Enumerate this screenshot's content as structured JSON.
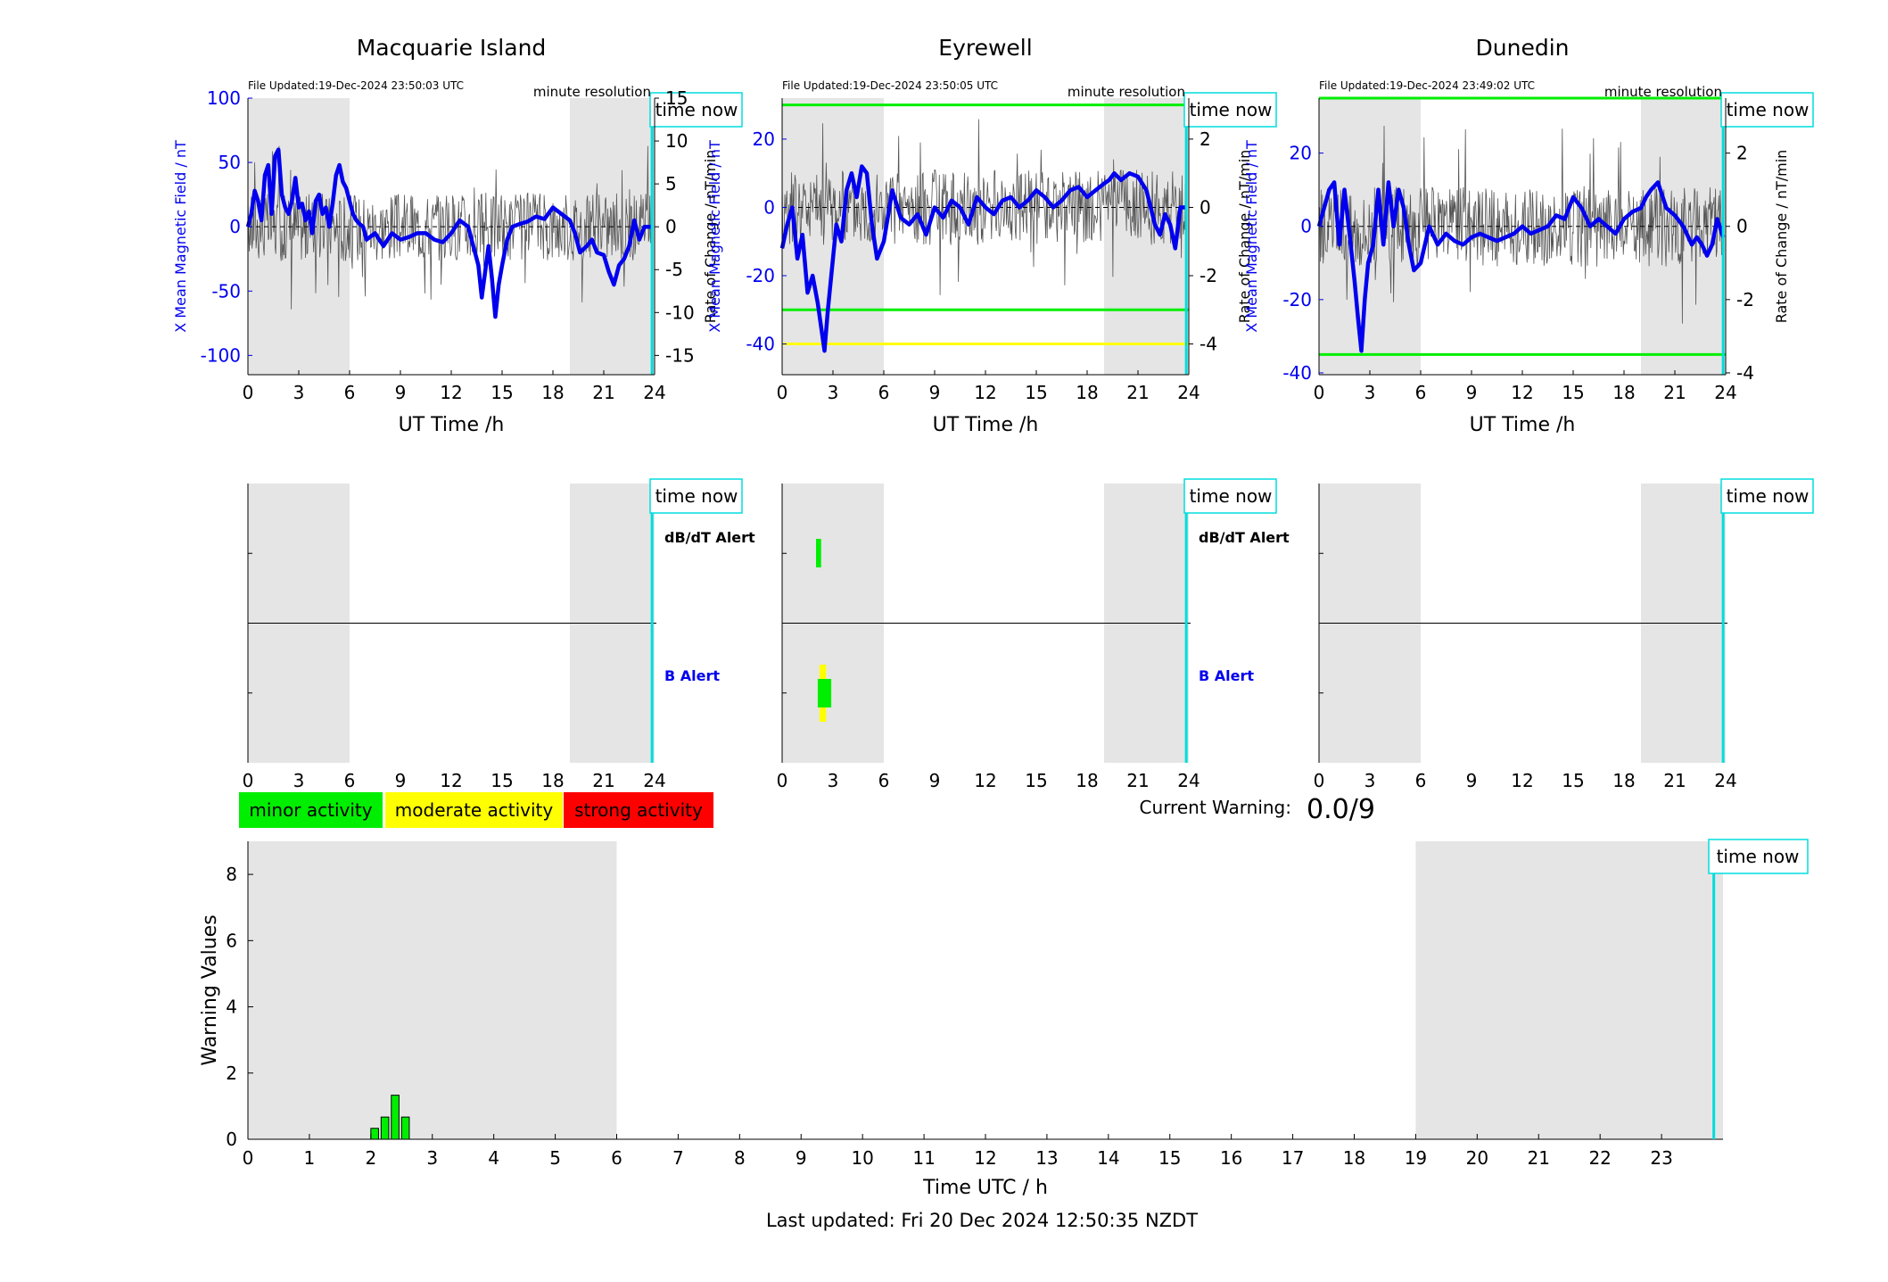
{
  "footer": "Last updated: Fri 20 Dec 2024 12:50:35 NZDT",
  "colors": {
    "b_line": "#0000ee",
    "dbdt_line": "#555555",
    "minor": "#00ee00",
    "moderate": "#ffff00",
    "strong": "#ff0000",
    "night_shade": "#e5e5e5",
    "time_now": "#00dddd",
    "threshold_green": "#00ee00",
    "threshold_yellow": "#ffff00"
  },
  "legend": {
    "minor": "minor activity",
    "moderate": "moderate activity",
    "strong": "strong activity"
  },
  "current_warning": {
    "label": "Current Warning:",
    "value": "0.0/9"
  },
  "common": {
    "time_now_label": "time now",
    "resolution_label": "minute resolution",
    "ut_xlabel": "UT Time /h",
    "left_ylabel": "X Mean Magnetic Field / nT",
    "right_ylabel": "Rate of Change / nT/min",
    "dbdt_alert_label": "dB/dT Alert",
    "b_alert_label": "B Alert",
    "x_ticks": [
      0,
      3,
      6,
      9,
      12,
      15,
      18,
      21,
      24
    ]
  },
  "chart_data": [
    {
      "type": "line",
      "station": "Macquarie Island",
      "file_updated": "File Updated:19-Dec-2024 23:50:03 UTC",
      "xlim": [
        0,
        24
      ],
      "ylim_left": [
        -115,
        100
      ],
      "yticks_left": [
        -100,
        -50,
        0,
        50,
        100
      ],
      "ylim_right": [
        -17.25,
        15
      ],
      "yticks_right": [
        -15,
        -10,
        -5,
        0,
        5,
        10,
        15
      ],
      "night_shading": [
        [
          0,
          6
        ],
        [
          19,
          24
        ]
      ],
      "time_now": 23.85,
      "thresholds": [],
      "dbdt_noise_amplitude": 4,
      "series": [
        {
          "name": "X Mean Magnetic Field",
          "axis": "left",
          "x": [
            0,
            0.2,
            0.4,
            0.6,
            0.8,
            1,
            1.2,
            1.4,
            1.6,
            1.8,
            2,
            2.2,
            2.4,
            2.6,
            2.8,
            3,
            3.2,
            3.4,
            3.6,
            3.8,
            4,
            4.2,
            4.4,
            4.6,
            4.8,
            5,
            5.2,
            5.4,
            5.6,
            5.8,
            6,
            6.2,
            6.4,
            6.6,
            6.8,
            7,
            7.5,
            8,
            8.5,
            9,
            9.5,
            10,
            10.5,
            11,
            11.5,
            12,
            12.5,
            13,
            13.3,
            13.6,
            13.8,
            14,
            14.2,
            14.4,
            14.6,
            14.8,
            15,
            15.3,
            15.6,
            16,
            16.5,
            17,
            17.5,
            18,
            18.5,
            19,
            19.3,
            19.6,
            20,
            20.3,
            20.6,
            21,
            21.3,
            21.6,
            21.9,
            22.2,
            22.5,
            22.8,
            23.1,
            23.4,
            23.7,
            23.85
          ],
          "y": [
            0,
            10,
            28,
            20,
            5,
            40,
            48,
            10,
            55,
            60,
            25,
            15,
            10,
            20,
            38,
            15,
            18,
            5,
            12,
            -5,
            20,
            25,
            10,
            15,
            0,
            18,
            40,
            48,
            35,
            30,
            20,
            10,
            5,
            2,
            0,
            -10,
            -5,
            -15,
            -5,
            -10,
            -8,
            -5,
            -5,
            -10,
            -12,
            -5,
            5,
            0,
            -15,
            -30,
            -55,
            -35,
            -15,
            -40,
            -70,
            -45,
            -30,
            -10,
            0,
            2,
            4,
            8,
            6,
            15,
            10,
            5,
            -5,
            -20,
            -15,
            -10,
            -20,
            -22,
            -35,
            -45,
            -30,
            -25,
            -15,
            5,
            -10,
            0,
            0,
            0
          ]
        },
        {
          "name": "Rate of Change",
          "axis": "right",
          "x": [
            0,
            23.85
          ],
          "y": [
            0,
            0
          ]
        }
      ]
    },
    {
      "type": "line",
      "station": "Eyrewell",
      "file_updated": "File Updated:19-Dec-2024 23:50:05 UTC",
      "xlim": [
        0,
        24
      ],
      "ylim_left": [
        -49,
        32
      ],
      "yticks_left": [
        -40,
        -20,
        0,
        20
      ],
      "ylim_right": [
        -4.9,
        3.2
      ],
      "yticks_right": [
        -4,
        -2,
        0,
        2
      ],
      "night_shading": [
        [
          0,
          6
        ],
        [
          19,
          24
        ]
      ],
      "time_now": 23.85,
      "thresholds": [
        {
          "value": 30,
          "color": "green"
        },
        {
          "value": -30,
          "color": "green"
        },
        {
          "value": -40,
          "color": "yellow"
        }
      ],
      "dbdt_noise_amplitude": 1.1,
      "series": [
        {
          "name": "X Mean Magnetic Field",
          "axis": "left",
          "x": [
            0,
            0.3,
            0.6,
            0.9,
            1.2,
            1.5,
            1.8,
            2.1,
            2.3,
            2.5,
            2.7,
            2.9,
            3.2,
            3.5,
            3.8,
            4.1,
            4.4,
            4.7,
            5,
            5.3,
            5.6,
            6,
            6.5,
            7,
            7.5,
            8,
            8.5,
            9,
            9.5,
            10,
            10.5,
            11,
            11.5,
            12,
            12.5,
            13,
            13.5,
            14,
            14.5,
            15,
            15.5,
            16,
            16.5,
            17,
            17.5,
            18,
            18.5,
            19,
            19.3,
            19.6,
            20,
            20.5,
            21,
            21.5,
            22,
            22.3,
            22.6,
            22.9,
            23.2,
            23.5,
            23.85
          ],
          "y": [
            -12,
            -5,
            0,
            -15,
            -8,
            -25,
            -20,
            -28,
            -35,
            -42,
            -30,
            -20,
            -5,
            -10,
            5,
            10,
            3,
            12,
            10,
            -5,
            -15,
            -10,
            5,
            -3,
            -5,
            -2,
            -8,
            0,
            -3,
            2,
            0,
            -5,
            3,
            0,
            -2,
            2,
            3,
            0,
            2,
            5,
            3,
            0,
            2,
            5,
            6,
            3,
            5,
            7,
            8,
            10,
            8,
            10,
            9,
            5,
            -5,
            -8,
            -2,
            -5,
            -12,
            0,
            0
          ]
        },
        {
          "name": "Rate of Change",
          "axis": "right",
          "x": [
            0,
            23.85
          ],
          "y": [
            0,
            0
          ]
        }
      ]
    },
    {
      "type": "line",
      "station": "Dunedin",
      "file_updated": "File Updated:19-Dec-2024 23:49:02 UTC",
      "xlim": [
        0,
        24
      ],
      "ylim_left": [
        -40.5,
        35
      ],
      "yticks_left": [
        -40,
        -20,
        0,
        20
      ],
      "ylim_right": [
        -4.05,
        3.5
      ],
      "yticks_right": [
        -4,
        -2,
        0,
        2
      ],
      "night_shading": [
        [
          0,
          6
        ],
        [
          19,
          24
        ]
      ],
      "time_now": 23.85,
      "thresholds": [
        {
          "value": 35,
          "color": "green"
        },
        {
          "value": -35,
          "color": "green"
        }
      ],
      "dbdt_noise_amplitude": 1.1,
      "series": [
        {
          "name": "X Mean Magnetic Field",
          "axis": "left",
          "x": [
            0,
            0.3,
            0.6,
            0.9,
            1.2,
            1.5,
            1.8,
            2.1,
            2.3,
            2.5,
            2.7,
            2.9,
            3.2,
            3.5,
            3.8,
            4.1,
            4.4,
            4.7,
            5,
            5.3,
            5.6,
            6,
            6.5,
            7,
            7.5,
            8,
            8.5,
            9,
            9.5,
            10,
            10.5,
            11,
            11.5,
            12,
            12.5,
            13,
            13.5,
            14,
            14.5,
            15,
            15.5,
            16,
            16.5,
            17,
            17.5,
            18,
            18.5,
            19,
            19.3,
            19.6,
            20,
            20.5,
            21,
            21.5,
            22,
            22.3,
            22.6,
            22.9,
            23.2,
            23.5,
            23.85
          ],
          "y": [
            0,
            5,
            10,
            12,
            -5,
            10,
            -2,
            -15,
            -25,
            -34,
            -20,
            -10,
            -5,
            10,
            -5,
            12,
            0,
            10,
            5,
            -5,
            -12,
            -10,
            0,
            -5,
            -2,
            -4,
            -5,
            -3,
            -2,
            -3,
            -4,
            -3,
            -2,
            0,
            -2,
            -1,
            0,
            3,
            2,
            8,
            5,
            0,
            2,
            0,
            -2,
            2,
            4,
            5,
            8,
            10,
            12,
            5,
            3,
            0,
            -5,
            -3,
            -5,
            -8,
            -5,
            2,
            -3
          ]
        },
        {
          "name": "Rate of Change",
          "axis": "right",
          "x": [
            0,
            23.85
          ],
          "y": [
            0,
            0
          ]
        }
      ]
    },
    {
      "type": "bar",
      "station": "Macquarie Island",
      "panel": "alerts",
      "xlim": [
        0,
        24
      ],
      "night_shading": [
        [
          0,
          6
        ],
        [
          19,
          24
        ]
      ],
      "time_now": 23.85,
      "dbdt_alerts": [],
      "b_alerts": [],
      "show_alert_labels": true
    },
    {
      "type": "bar",
      "station": "Eyrewell",
      "panel": "alerts",
      "xlim": [
        0,
        24
      ],
      "night_shading": [
        [
          0,
          6
        ],
        [
          19,
          24
        ]
      ],
      "time_now": 23.85,
      "dbdt_alerts": [
        {
          "start": 2.0,
          "end": 2.3,
          "level": "minor"
        }
      ],
      "b_alerts": [
        {
          "start": 2.2,
          "end": 2.6,
          "level": "moderate"
        },
        {
          "start": 2.1,
          "end": 2.9,
          "level": "minor"
        }
      ],
      "show_alert_labels": true
    },
    {
      "type": "bar",
      "station": "Dunedin",
      "panel": "alerts",
      "xlim": [
        0,
        24
      ],
      "night_shading": [
        [
          0,
          6
        ],
        [
          19,
          24
        ]
      ],
      "time_now": 23.85,
      "dbdt_alerts": [],
      "b_alerts": [],
      "show_alert_labels": false
    },
    {
      "type": "bar",
      "panel": "warning",
      "xlabel": "Time UTC / h",
      "ylabel": "Warning Values",
      "xlim": [
        0,
        24
      ],
      "ylim": [
        0,
        9
      ],
      "xticks": [
        0,
        1,
        2,
        3,
        4,
        5,
        6,
        7,
        8,
        9,
        10,
        11,
        12,
        13,
        14,
        15,
        16,
        17,
        18,
        19,
        20,
        21,
        22,
        23
      ],
      "yticks": [
        0,
        2,
        4,
        6,
        8
      ],
      "night_shading": [
        [
          0,
          6
        ],
        [
          19,
          24
        ]
      ],
      "time_now": 23.85,
      "bar_width": 0.125,
      "bars": [
        {
          "x": 2.0,
          "value": 0.33
        },
        {
          "x": 2.167,
          "value": 0.67
        },
        {
          "x": 2.333,
          "value": 1.33
        },
        {
          "x": 2.5,
          "value": 0.67
        }
      ]
    }
  ]
}
